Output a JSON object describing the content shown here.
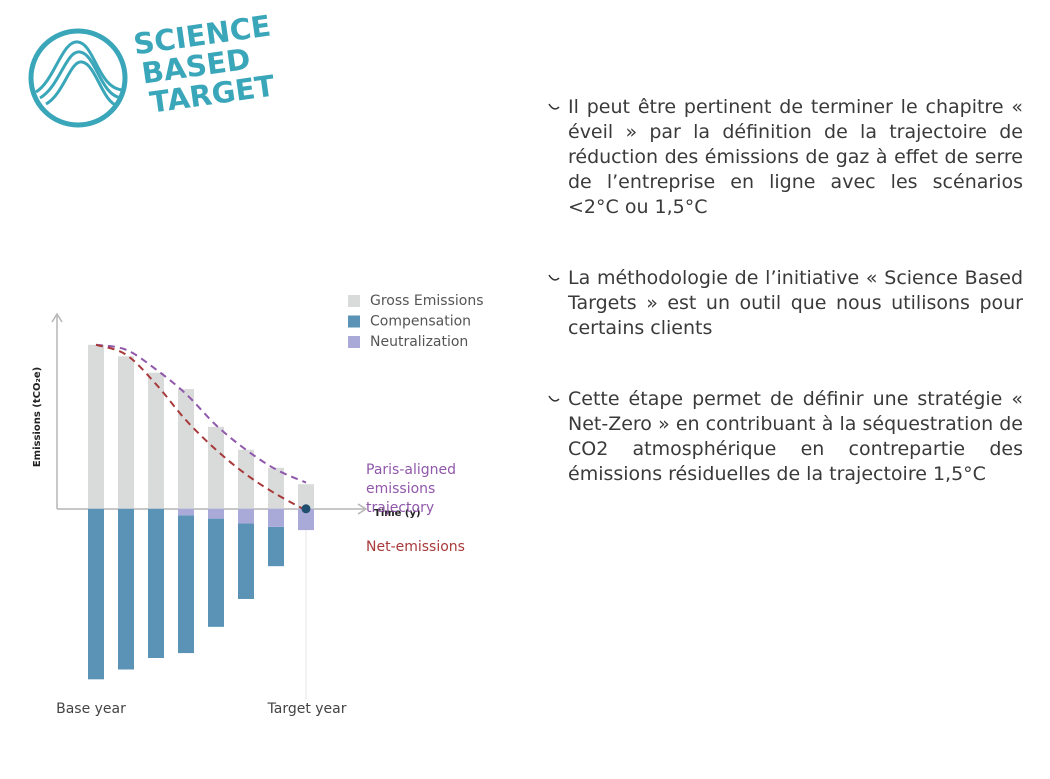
{
  "logo": {
    "lines": [
      "SCIENCE",
      "BASED",
      "TARGET"
    ]
  },
  "bullets": [
    "Il peut être pertinent de terminer le chapitre « éveil » par la définition de la trajectoire de réduction des émissions de gaz à effet de serre de l’entreprise en ligne avec les scénarios <2°C ou 1,5°C",
    "La méthodologie de l’initiative « Science Based Targets » est un outil que nous utilisons pour certains clients",
    "Cette étape permet de définir une stratégie « Net-Zero » en contribuant à la séquestration de CO2 atmosphérique en contrepartie des émissions résiduelles de la trajectoire 1,5°C"
  ],
  "chart_data": {
    "type": "bar",
    "x_label": "Time (y)",
    "y_label": "Emissions (tCO₂e)",
    "categories": [
      "Base year",
      null,
      null,
      null,
      null,
      null,
      null,
      "Target year"
    ],
    "ylim": [
      -116,
      120
    ],
    "series": [
      {
        "name": "Gross Emissions",
        "type": "bar",
        "color": "#d9dbdb",
        "values": [
          100,
          93,
          83,
          73,
          50,
          36,
          25,
          15
        ]
      },
      {
        "name": "Compensation",
        "type": "bar",
        "color": "#5a93b6",
        "values": [
          104,
          98,
          91,
          84,
          66,
          46,
          24,
          0
        ]
      },
      {
        "name": "Neutralization",
        "type": "bar",
        "color": "#aaaad8",
        "values": [
          0,
          0,
          0,
          4,
          6,
          9,
          11,
          13
        ]
      },
      {
        "name": "Paris-aligned emissions trajectory",
        "type": "line",
        "color": "#9058aa",
        "values": [
          100,
          97,
          85,
          70,
          51,
          36,
          24,
          16
        ]
      },
      {
        "name": "Net-emissions",
        "type": "line",
        "color": "#a8393a",
        "values": [
          100,
          94,
          76,
          54,
          36,
          21,
          9,
          -1
        ]
      }
    ]
  }
}
